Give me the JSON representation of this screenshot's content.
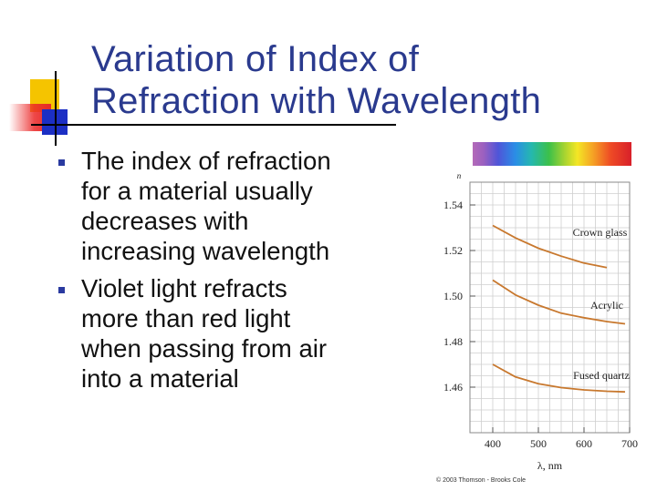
{
  "slide": {
    "title_lines": [
      "Variation of Index of",
      "Refraction with Wavelength"
    ],
    "bullets": [
      [
        "The index of refraction",
        "for a material usually",
        "decreases with",
        "increasing wavelength"
      ],
      [
        "Violet light refracts",
        "more than red light",
        "when passing from air",
        "into a material"
      ]
    ],
    "credit": "© 2003 Thomson - Brooks Cole",
    "colors": {
      "title": "#2a3a8e",
      "curve": "#c8782e",
      "bullet_marker": "#2a3aa0"
    }
  },
  "chart_data": {
    "type": "line",
    "title": "",
    "xlabel": "λ, nm",
    "ylabel": "n",
    "xlim": [
      350,
      700
    ],
    "ylim": [
      1.44,
      1.55
    ],
    "x_ticks": [
      400,
      500,
      600,
      700
    ],
    "x_tick_labels": [
      "400",
      "500",
      "600",
      "700"
    ],
    "y_ticks": [
      1.46,
      1.48,
      1.5,
      1.52,
      1.54
    ],
    "y_tick_labels": [
      "1.46",
      "1.48",
      "1.50",
      "1.52",
      "1.54"
    ],
    "grid": true,
    "legend": "none",
    "series": [
      {
        "name": "Crown glass",
        "x": [
          400,
          450,
          500,
          550,
          600,
          650
        ],
        "y": [
          1.531,
          1.5255,
          1.521,
          1.5175,
          1.5145,
          1.5125
        ]
      },
      {
        "name": "Acrylic",
        "x": [
          400,
          450,
          500,
          550,
          600,
          650,
          690
        ],
        "y": [
          1.507,
          1.5005,
          1.496,
          1.4925,
          1.4905,
          1.4888,
          1.4878
        ]
      },
      {
        "name": "Fused quartz",
        "x": [
          400,
          450,
          500,
          550,
          600,
          650,
          690
        ],
        "y": [
          1.47,
          1.4645,
          1.4615,
          1.4598,
          1.4588,
          1.4582,
          1.4579
        ]
      }
    ]
  }
}
